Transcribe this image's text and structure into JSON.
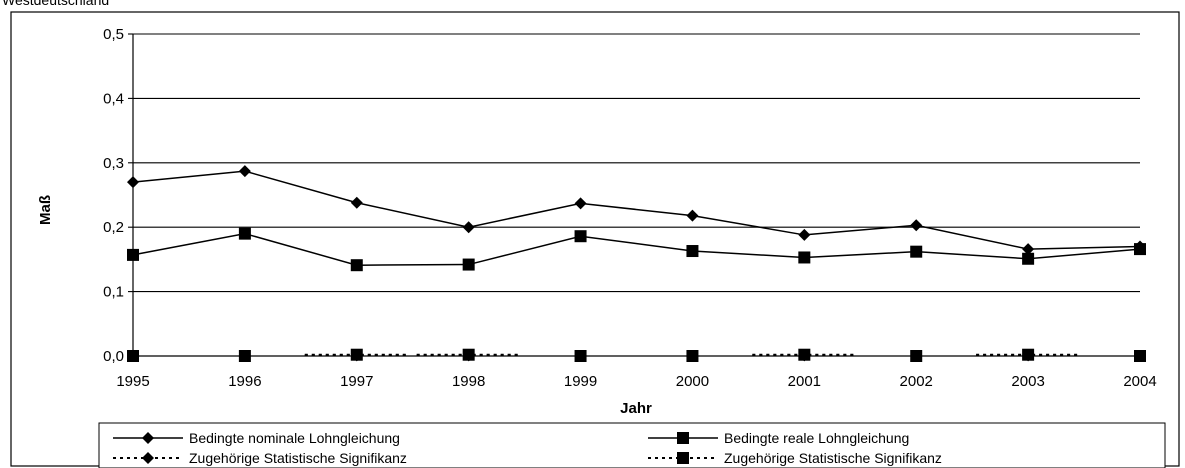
{
  "page": {
    "title": "Westdeutschland"
  },
  "chart_data": {
    "type": "line",
    "title": "",
    "xlabel": "Jahr",
    "ylabel": "Maß",
    "x": [
      "1995",
      "1996",
      "1997",
      "1998",
      "1999",
      "2000",
      "2001",
      "2002",
      "2003",
      "2004"
    ],
    "ylim": [
      0,
      0.5
    ],
    "yticks": [
      "0,0",
      "0,1",
      "0,2",
      "0,3",
      "0,4",
      "0,5"
    ],
    "grid": true,
    "legend_position": "bottom",
    "series": [
      {
        "name": "Bedingte nominale Lohngleichung",
        "marker": "diamond",
        "dashed": false,
        "values": [
          0.27,
          0.287,
          0.238,
          0.2,
          0.237,
          0.218,
          0.188,
          0.203,
          0.166,
          0.17
        ]
      },
      {
        "name": "Bedingte reale Lohngleichung",
        "marker": "square",
        "dashed": false,
        "values": [
          0.157,
          0.19,
          0.141,
          0.142,
          0.186,
          0.163,
          0.153,
          0.162,
          0.151,
          0.166
        ]
      },
      {
        "name": "Zugehörige Statistische Signifikanz",
        "marker": "diamond",
        "dashed": true,
        "values": [
          0,
          0,
          0.001,
          0.001,
          0,
          0,
          0.001,
          0,
          0.001,
          0
        ]
      },
      {
        "name": "Zugehörige Statistische Signifikanz",
        "marker": "square",
        "dashed": true,
        "values": [
          0,
          0,
          0.002,
          0.002,
          0,
          0,
          0.002,
          0,
          0.002,
          0
        ]
      }
    ]
  }
}
